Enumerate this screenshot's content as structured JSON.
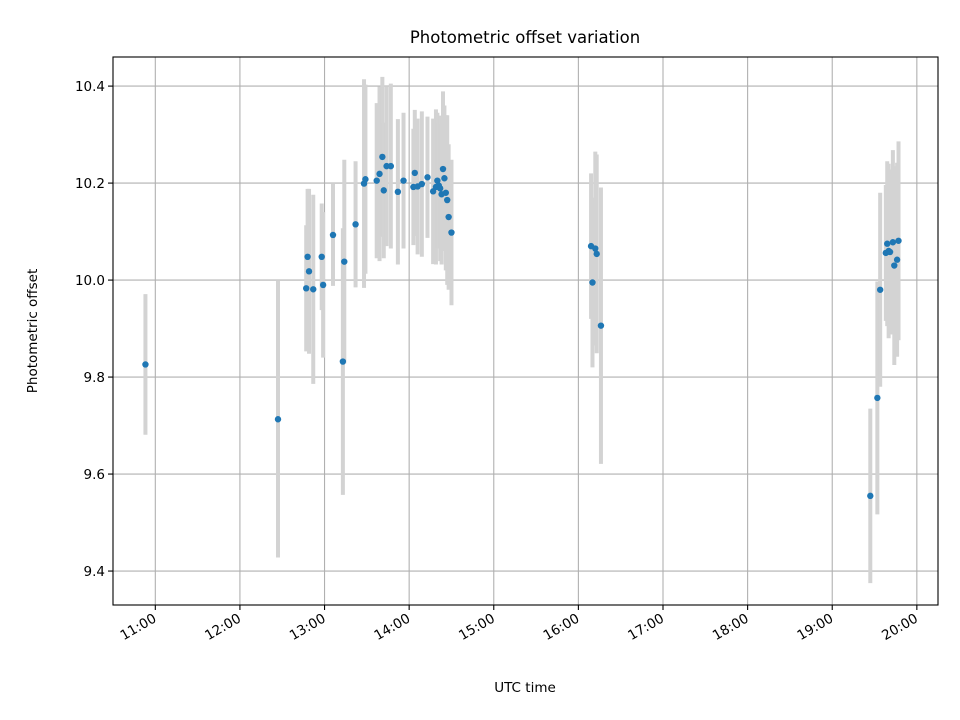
{
  "chart_data": {
    "type": "scatter",
    "title": "Photometric offset variation",
    "xlabel": "UTC time",
    "ylabel": "Photometric offset",
    "x_type": "time",
    "xlim": [
      "10:30",
      "20:15"
    ],
    "ylim": [
      9.33,
      10.46
    ],
    "x_ticks": [
      "11:00",
      "12:00",
      "13:00",
      "14:00",
      "15:00",
      "16:00",
      "17:00",
      "18:00",
      "19:00",
      "20:00"
    ],
    "y_ticks": [
      "9.4",
      "9.6",
      "9.8",
      "10.0",
      "10.2",
      "10.4"
    ],
    "grid": true,
    "point_color": "#1f77b4",
    "errorbar_color": "#d3d3d3",
    "series": [
      {
        "x": [
          "10:53",
          "12:27",
          "12:47",
          "12:48",
          "12:49",
          "12:52",
          "12:58",
          "12:59",
          "13:06",
          "13:13",
          "13:14",
          "13:22",
          "13:28",
          "13:29",
          "13:37",
          "13:39",
          "13:41",
          "13:42",
          "13:44",
          "13:47",
          "13:52",
          "13:56",
          "14:03",
          "14:04",
          "14:06",
          "14:09",
          "14:13",
          "14:17",
          "14:19",
          "14:20",
          "14:21",
          "14:22",
          "14:23",
          "14:24",
          "14:25",
          "14:26",
          "14:27",
          "14:28",
          "14:30",
          "16:09",
          "16:10",
          "16:12",
          "16:13",
          "16:16",
          "19:27",
          "19:32",
          "19:34",
          "19:38",
          "19:39",
          "19:40",
          "19:41",
          "19:43",
          "19:44",
          "19:46",
          "19:47"
        ],
        "y": [
          9.826,
          9.713,
          9.983,
          10.048,
          10.018,
          9.981,
          10.048,
          9.99,
          10.093,
          9.832,
          10.038,
          10.115,
          10.199,
          10.208,
          10.205,
          10.219,
          10.254,
          10.185,
          10.235,
          10.235,
          10.182,
          10.205,
          10.192,
          10.221,
          10.193,
          10.198,
          10.212,
          10.183,
          10.192,
          10.205,
          10.195,
          10.189,
          10.177,
          10.229,
          10.21,
          10.18,
          10.165,
          10.13,
          10.098,
          10.07,
          9.995,
          10.065,
          10.054,
          9.906,
          9.555,
          9.757,
          9.98,
          10.056,
          10.075,
          10.06,
          10.058,
          10.078,
          10.03,
          10.042,
          10.081
        ],
        "yerr": [
          0.145,
          0.285,
          0.13,
          0.14,
          0.17,
          0.195,
          0.11,
          0.15,
          0.105,
          0.275,
          0.21,
          0.13,
          0.215,
          0.195,
          0.16,
          0.18,
          0.165,
          0.14,
          0.165,
          0.17,
          0.15,
          0.14,
          0.12,
          0.13,
          0.14,
          0.15,
          0.125,
          0.15,
          0.16,
          0.14,
          0.13,
          0.15,
          0.145,
          0.16,
          0.15,
          0.16,
          0.175,
          0.15,
          0.15,
          0.15,
          0.175,
          0.2,
          0.205,
          0.285,
          0.18,
          0.24,
          0.2,
          0.14,
          0.17,
          0.18,
          0.17,
          0.19,
          0.205,
          0.2,
          0.205
        ]
      }
    ]
  }
}
